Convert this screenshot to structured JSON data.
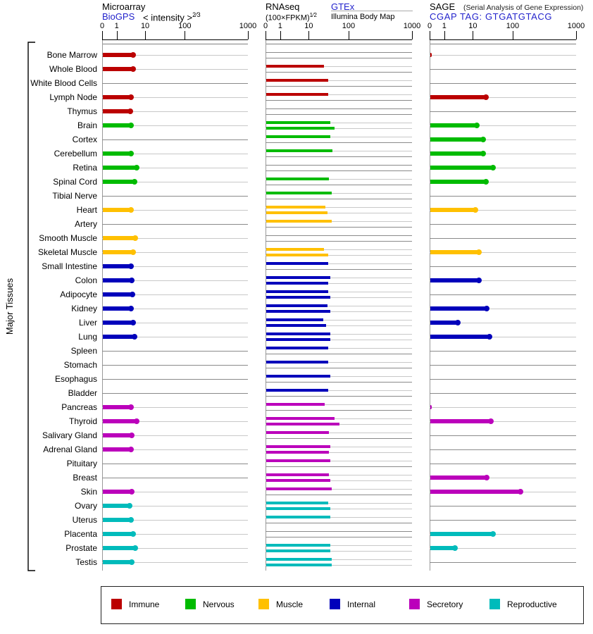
{
  "left_axis_label": "Major Tissues",
  "panels": {
    "microarray": {
      "title": "Microarray",
      "link": "BioGPS",
      "scale_label": "< intensity >",
      "scale_exp": "2⁄3"
    },
    "rnaseq": {
      "title": "RNAseq",
      "link": "GTEx",
      "scale_label": "(100×FPKM)",
      "scale_exp": "1⁄2",
      "source2": "Illumina Body Map"
    },
    "sage": {
      "title": "SAGE",
      "subtitle": "(Serial Analysis of Gene Expression)",
      "link": "CGAP TAG: GTGATGTACG"
    }
  },
  "axis_ticks": [
    "0",
    "1",
    "10",
    "100",
    "1000"
  ],
  "legend": [
    {
      "label": "Immune",
      "color": "#bb0000"
    },
    {
      "label": "Nervous",
      "color": "#00bb00"
    },
    {
      "label": "Muscle",
      "color": "#ffc000"
    },
    {
      "label": "Internal",
      "color": "#0000bb"
    },
    {
      "label": "Secretory",
      "color": "#bb00bb"
    },
    {
      "label": "Reproductive",
      "color": "#00bbbb"
    }
  ],
  "chart_data": {
    "type": "bar",
    "orientation": "horizontal",
    "title": "Gene expression per tissue from Microarray (BioGPS), RNAseq (GTEx / Illumina Body Map) and SAGE (CGAP TAG: GTGATGTACG)",
    "x_axis": {
      "ticks": [
        0,
        1,
        10,
        100,
        1000
      ],
      "scale": "compressed log-like (0,1,10,100,1000)",
      "grid": false
    },
    "panel_series": [
      "Microarray: BioGPS < intensity >2/3",
      "RNAseq GTEx (100×FPKM)1/2",
      "RNAseq Illumina Body Map (100×FPKM)1/2",
      "SAGE CGAP tag counts"
    ],
    "legend_position": "bottom",
    "tissues": [
      {
        "name": "Bone Marrow",
        "group": "Immune",
        "microarray": 4.0,
        "rnaseq_gtex": null,
        "rnaseq_illumina": null,
        "sage": 0.08
      },
      {
        "name": "Whole Blood",
        "group": "Immune",
        "microarray": 4.0,
        "rnaseq_gtex": 23,
        "rnaseq_illumina": null,
        "sage": null
      },
      {
        "name": "White Blood Cells",
        "group": "Immune",
        "microarray": null,
        "rnaseq_gtex": 30,
        "rnaseq_illumina": null,
        "sage": null
      },
      {
        "name": "Lymph Node",
        "group": "Immune",
        "microarray": 3.3,
        "rnaseq_gtex": 30,
        "rnaseq_illumina": null,
        "sage": 22
      },
      {
        "name": "Thymus",
        "group": "Immune",
        "microarray": 3.2,
        "rnaseq_gtex": null,
        "rnaseq_illumina": null,
        "sage": null
      },
      {
        "name": "Brain",
        "group": "Nervous",
        "microarray": 3.3,
        "rnaseq_gtex": 33,
        "rnaseq_illumina": 42,
        "sage": 13
      },
      {
        "name": "Cortex",
        "group": "Nervous",
        "microarray": null,
        "rnaseq_gtex": 33,
        "rnaseq_illumina": null,
        "sage": 19
      },
      {
        "name": "Cerebellum",
        "group": "Nervous",
        "microarray": 3.3,
        "rnaseq_gtex": 37,
        "rnaseq_illumina": null,
        "sage": 19
      },
      {
        "name": "Retina",
        "group": "Nervous",
        "microarray": 5.3,
        "rnaseq_gtex": null,
        "rnaseq_illumina": null,
        "sage": 33
      },
      {
        "name": "Spinal Cord",
        "group": "Nervous",
        "microarray": 4.5,
        "rnaseq_gtex": 31,
        "rnaseq_illumina": null,
        "sage": 22
      },
      {
        "name": "Tibial Nerve",
        "group": "Nervous",
        "microarray": null,
        "rnaseq_gtex": 36,
        "rnaseq_illumina": null,
        "sage": null
      },
      {
        "name": "Heart",
        "group": "Muscle",
        "microarray": 3.3,
        "rnaseq_gtex": 25,
        "rnaseq_illumina": 28,
        "sage": 12
      },
      {
        "name": "Artery",
        "group": "Muscle",
        "microarray": null,
        "rnaseq_gtex": 36,
        "rnaseq_illumina": null,
        "sage": null
      },
      {
        "name": "Smooth Muscle",
        "group": "Muscle",
        "microarray": 4.7,
        "rnaseq_gtex": null,
        "rnaseq_illumina": null,
        "sage": null
      },
      {
        "name": "Skeletal Muscle",
        "group": "Muscle",
        "microarray": 4.0,
        "rnaseq_gtex": 23,
        "rnaseq_illumina": 29,
        "sage": 15
      },
      {
        "name": "Small Intestine",
        "group": "Internal",
        "microarray": 3.3,
        "rnaseq_gtex": 29,
        "rnaseq_illumina": null,
        "sage": null
      },
      {
        "name": "Colon",
        "group": "Internal",
        "microarray": 3.5,
        "rnaseq_gtex": 33,
        "rnaseq_illumina": 30,
        "sage": 15
      },
      {
        "name": "Adipocyte",
        "group": "Internal",
        "microarray": 3.8,
        "rnaseq_gtex": 30,
        "rnaseq_illumina": 34,
        "sage": null
      },
      {
        "name": "Kidney",
        "group": "Internal",
        "microarray": 3.3,
        "rnaseq_gtex": 28,
        "rnaseq_illumina": 34,
        "sage": 23
      },
      {
        "name": "Liver",
        "group": "Internal",
        "microarray": 4.0,
        "rnaseq_gtex": 22,
        "rnaseq_illumina": 26,
        "sage": 3.2
      },
      {
        "name": "Lung",
        "group": "Internal",
        "microarray": 4.5,
        "rnaseq_gtex": 34,
        "rnaseq_illumina": 34,
        "sage": 27
      },
      {
        "name": "Spleen",
        "group": "Internal",
        "microarray": null,
        "rnaseq_gtex": 30,
        "rnaseq_illumina": null,
        "sage": null
      },
      {
        "name": "Stomach",
        "group": "Internal",
        "microarray": null,
        "rnaseq_gtex": 30,
        "rnaseq_illumina": null,
        "sage": null
      },
      {
        "name": "Esophagus",
        "group": "Internal",
        "microarray": null,
        "rnaseq_gtex": 33,
        "rnaseq_illumina": null,
        "sage": null
      },
      {
        "name": "Bladder",
        "group": "Internal",
        "microarray": null,
        "rnaseq_gtex": 30,
        "rnaseq_illumina": null,
        "sage": null
      },
      {
        "name": "Pancreas",
        "group": "Secretory",
        "microarray": 3.3,
        "rnaseq_gtex": 24,
        "rnaseq_illumina": null,
        "sage": 0.08
      },
      {
        "name": "Thyroid",
        "group": "Secretory",
        "microarray": 5.3,
        "rnaseq_gtex": 42,
        "rnaseq_illumina": 56,
        "sage": 30
      },
      {
        "name": "Salivary Gland",
        "group": "Secretory",
        "microarray": 3.5,
        "rnaseq_gtex": 31,
        "rnaseq_illumina": null,
        "sage": null
      },
      {
        "name": "Adrenal Gland",
        "group": "Secretory",
        "microarray": 3.3,
        "rnaseq_gtex": 33,
        "rnaseq_illumina": 31,
        "sage": null
      },
      {
        "name": "Pituitary",
        "group": "Secretory",
        "microarray": null,
        "rnaseq_gtex": 34,
        "rnaseq_illumina": null,
        "sage": null
      },
      {
        "name": "Breast",
        "group": "Secretory",
        "microarray": null,
        "rnaseq_gtex": 31,
        "rnaseq_illumina": 33,
        "sage": 23
      },
      {
        "name": "Skin",
        "group": "Secretory",
        "microarray": 3.5,
        "rnaseq_gtex": 36,
        "rnaseq_illumina": null,
        "sage": 135
      },
      {
        "name": "Ovary",
        "group": "Reproductive",
        "microarray": 3.0,
        "rnaseq_gtex": 30,
        "rnaseq_illumina": 34,
        "sage": null
      },
      {
        "name": "Uterus",
        "group": "Reproductive",
        "microarray": 3.3,
        "rnaseq_gtex": 34,
        "rnaseq_illumina": null,
        "sage": null
      },
      {
        "name": "Placenta",
        "group": "Reproductive",
        "microarray": 4.0,
        "rnaseq_gtex": null,
        "rnaseq_illumina": null,
        "sage": 33
      },
      {
        "name": "Prostate",
        "group": "Reproductive",
        "microarray": 4.7,
        "rnaseq_gtex": 33,
        "rnaseq_illumina": 34,
        "sage": 2.5
      },
      {
        "name": "Testis",
        "group": "Reproductive",
        "microarray": 3.5,
        "rnaseq_gtex": 36,
        "rnaseq_illumina": 36,
        "sage": null
      }
    ]
  }
}
